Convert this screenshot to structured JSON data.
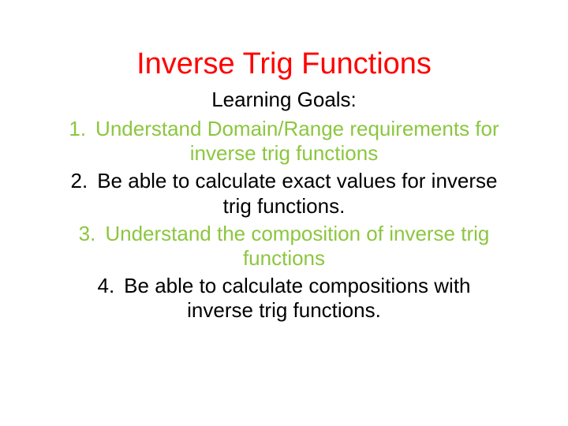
{
  "slide": {
    "title": "Inverse Trig Functions",
    "subtitle": "Learning Goals:",
    "goals": [
      {
        "text": "Understand Domain/Range requirements for inverse trig functions",
        "color": "#8cc63f"
      },
      {
        "text": "Be able to calculate exact values for inverse trig functions.",
        "color": "#000000"
      },
      {
        "text": "Understand the composition of inverse trig functions",
        "color": "#8cc63f"
      },
      {
        "text": "Be able to calculate compositions with inverse trig functions.",
        "color": "#000000"
      }
    ]
  },
  "colors": {
    "title_color": "#ff0000",
    "subtitle_color": "#000000",
    "background_color": "#ffffff"
  },
  "typography": {
    "font_family": "Arial",
    "title_fontsize": 38,
    "body_fontsize": 26
  }
}
